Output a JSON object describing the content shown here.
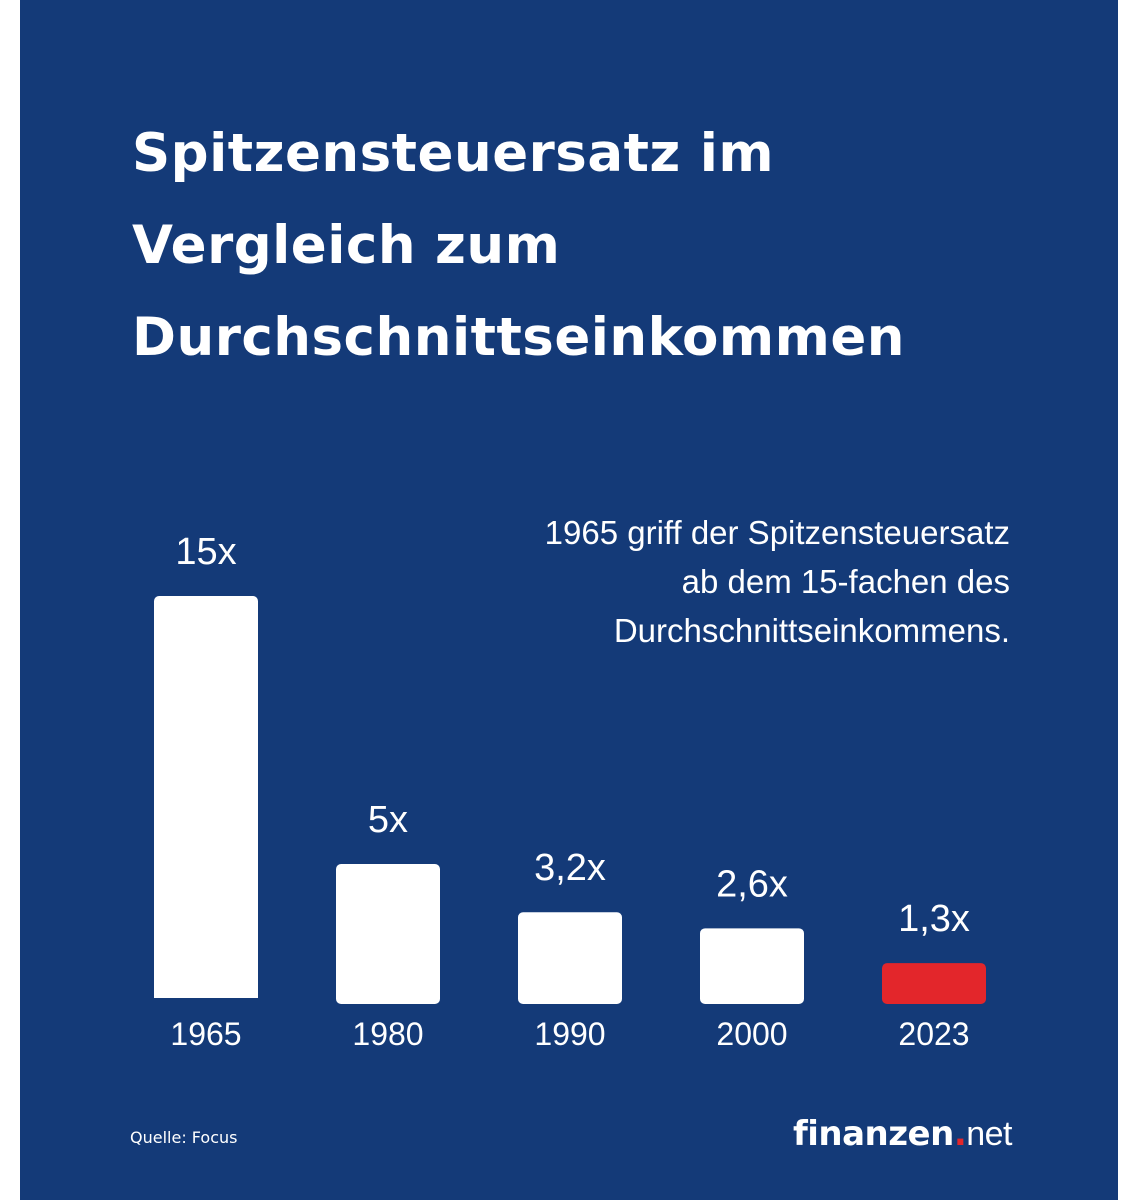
{
  "title_lines": [
    "Spitzensteuersatz im",
    "Vergleich zum",
    "Durchschnittseinkommen"
  ],
  "annotation_lines": [
    "1965 griff der Spitzensteuersatz",
    "ab dem 15-fachen des",
    "Durchschnittseinkommens."
  ],
  "source": "Quelle: Focus",
  "logo": {
    "strong": "finanzen",
    "dot": ".",
    "light": "net"
  },
  "colors": {
    "background": "#143a78",
    "bar": "#ffffff",
    "highlight": "#e3262b",
    "text": "#ffffff"
  },
  "chart_data": {
    "type": "bar",
    "categories": [
      "1965",
      "1980",
      "1990",
      "2000",
      "2023"
    ],
    "values": [
      15,
      5,
      3.2,
      2.6,
      1.3
    ],
    "data_labels": [
      "15x",
      "5x",
      "3,2x",
      "2,6x",
      "1,3x"
    ],
    "highlight": "2023",
    "xlabel": "",
    "ylabel": "",
    "ylim": [
      0,
      15
    ],
    "grid": false,
    "legend": "none"
  }
}
